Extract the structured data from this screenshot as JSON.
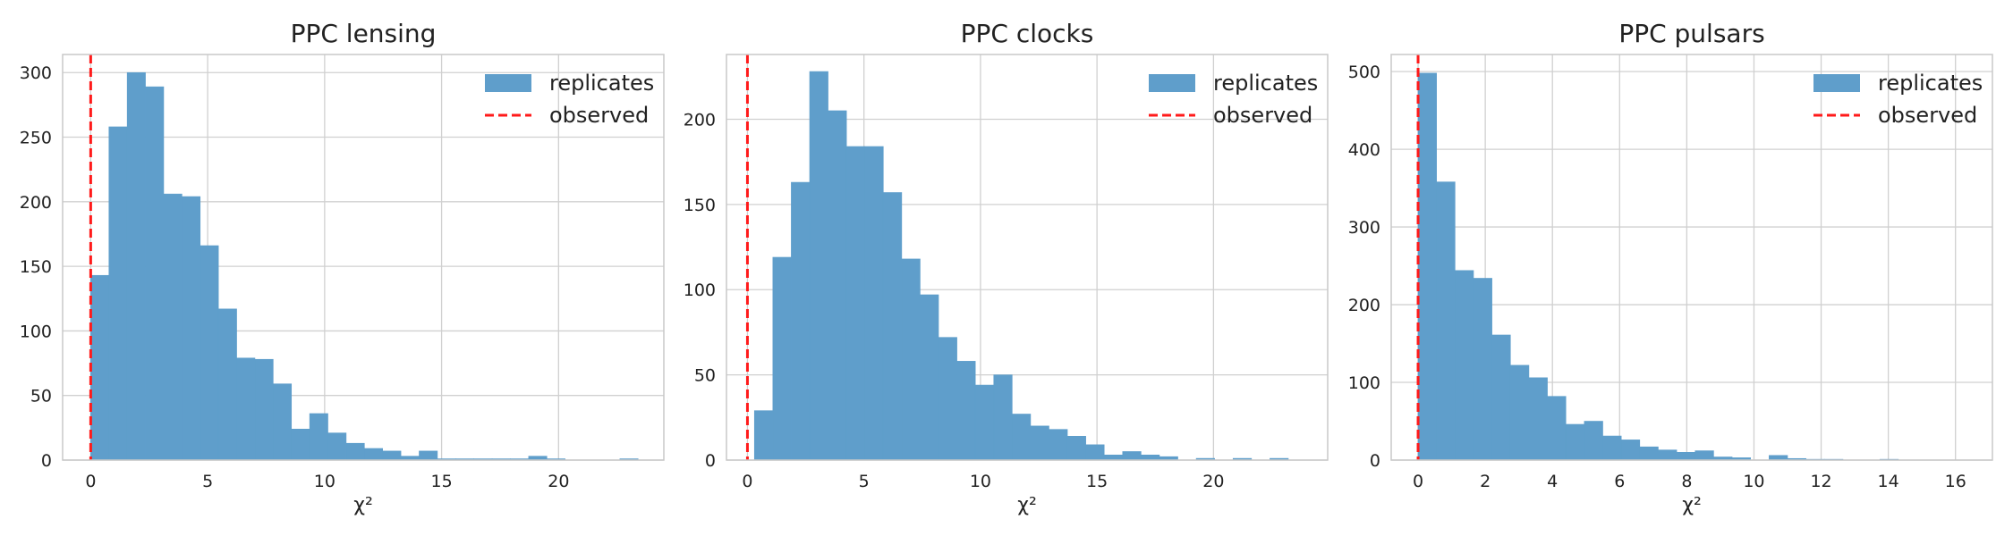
{
  "colors": {
    "bar": "#5f9ecb",
    "observed": "#ff1a1a",
    "grid": "#d0d0d0",
    "frame": "#c8c8c8"
  },
  "chart_data": [
    {
      "type": "bar",
      "title": "PPC lensing",
      "xlabel": "χ²",
      "ylabel": "",
      "grid": true,
      "legend": {
        "placement": "top-right",
        "entries": [
          "replicates",
          "observed"
        ]
      },
      "xlim": [
        -1.2,
        24.5
      ],
      "ylim": [
        0,
        314
      ],
      "xticks": [
        0,
        5,
        10,
        15,
        20
      ],
      "yticks": [
        0,
        50,
        100,
        150,
        200,
        250,
        300
      ],
      "bin_start": 0.0,
      "bin_width": 0.78,
      "counts": [
        143,
        258,
        300,
        289,
        206,
        204,
        166,
        117,
        79,
        78,
        59,
        24,
        36,
        21,
        13,
        9,
        7,
        3,
        7,
        1,
        1,
        1,
        1,
        1,
        3,
        1,
        0,
        0,
        0,
        1
      ],
      "observed": 0.0
    },
    {
      "type": "bar",
      "title": "PPC clocks",
      "xlabel": "χ²",
      "ylabel": "",
      "grid": true,
      "legend": {
        "placement": "top-right",
        "entries": [
          "replicates",
          "observed"
        ]
      },
      "xlim": [
        -0.9,
        24.9
      ],
      "ylim": [
        0,
        238
      ],
      "xticks": [
        0,
        5,
        10,
        15,
        20
      ],
      "yticks": [
        0,
        50,
        100,
        150,
        200
      ],
      "bin_start": 0.3,
      "bin_width": 0.79,
      "counts": [
        29,
        119,
        163,
        228,
        205,
        184,
        184,
        157,
        118,
        97,
        72,
        58,
        44,
        50,
        27,
        20,
        18,
        14,
        9,
        3,
        5,
        3,
        2,
        0,
        1,
        0,
        1,
        0,
        1
      ],
      "observed": 0.0
    },
    {
      "type": "bar",
      "title": "PPC pulsars",
      "xlabel": "χ²",
      "ylabel": "",
      "grid": true,
      "legend": {
        "placement": "top-right",
        "entries": [
          "replicates",
          "observed"
        ]
      },
      "xlim": [
        -0.8,
        17.1
      ],
      "ylim": [
        0,
        522
      ],
      "xticks": [
        0,
        2,
        4,
        6,
        8,
        10,
        12,
        14,
        16
      ],
      "yticks": [
        0,
        100,
        200,
        300,
        400,
        500
      ],
      "bin_start": 0.0,
      "bin_width": 0.55,
      "counts": [
        498,
        358,
        244,
        234,
        161,
        122,
        106,
        82,
        46,
        50,
        31,
        26,
        17,
        13,
        10,
        12,
        4,
        3,
        0,
        6,
        2,
        1,
        1,
        0,
        0,
        1,
        0,
        0,
        0,
        0
      ],
      "observed": 0.0
    }
  ]
}
